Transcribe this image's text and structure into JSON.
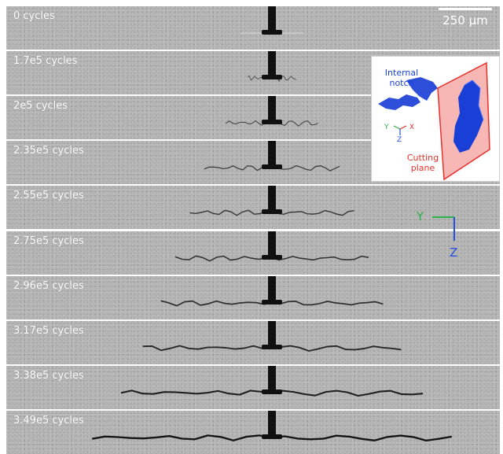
{
  "panels": [
    {
      "label": "0 cycles",
      "crack": 0.0
    },
    {
      "label": "1.7e5 cycles",
      "crack": 0.1
    },
    {
      "label": "2e5 cycles",
      "crack": 0.22
    },
    {
      "label": "2.35e5 cycles",
      "crack": 0.34
    },
    {
      "label": "2.55e5 cycles",
      "crack": 0.42
    },
    {
      "label": "2.75e5 cycles",
      "crack": 0.5
    },
    {
      "label": "2.96e5 cycles",
      "crack": 0.58
    },
    {
      "label": "3.17e5 cycles",
      "crack": 0.68
    },
    {
      "label": "3.38e5 cycles",
      "crack": 0.8
    },
    {
      "label": "3.49e5 cycles",
      "crack": 0.96
    }
  ],
  "scale_bar": {
    "label": "250 µm"
  },
  "inset": {
    "notch_label": "Internal notch",
    "notch_line1": "Internal",
    "notch_line2": "notch",
    "plane_label": "Cutting plane",
    "plane_line1": "Cutting",
    "plane_line2": "plane",
    "axes": {
      "y": "Y",
      "x": "X",
      "z": "Z"
    }
  },
  "axes_overlay": {
    "y": "Y",
    "z": "Z"
  },
  "colors": {
    "panel_gray": "#b3b3b3",
    "crack": "#111111",
    "notch_blue": "#1a3fd6",
    "plane_red": "#e8302a",
    "axis_green": "#2db04a",
    "axis_blue": "#2450e0"
  }
}
